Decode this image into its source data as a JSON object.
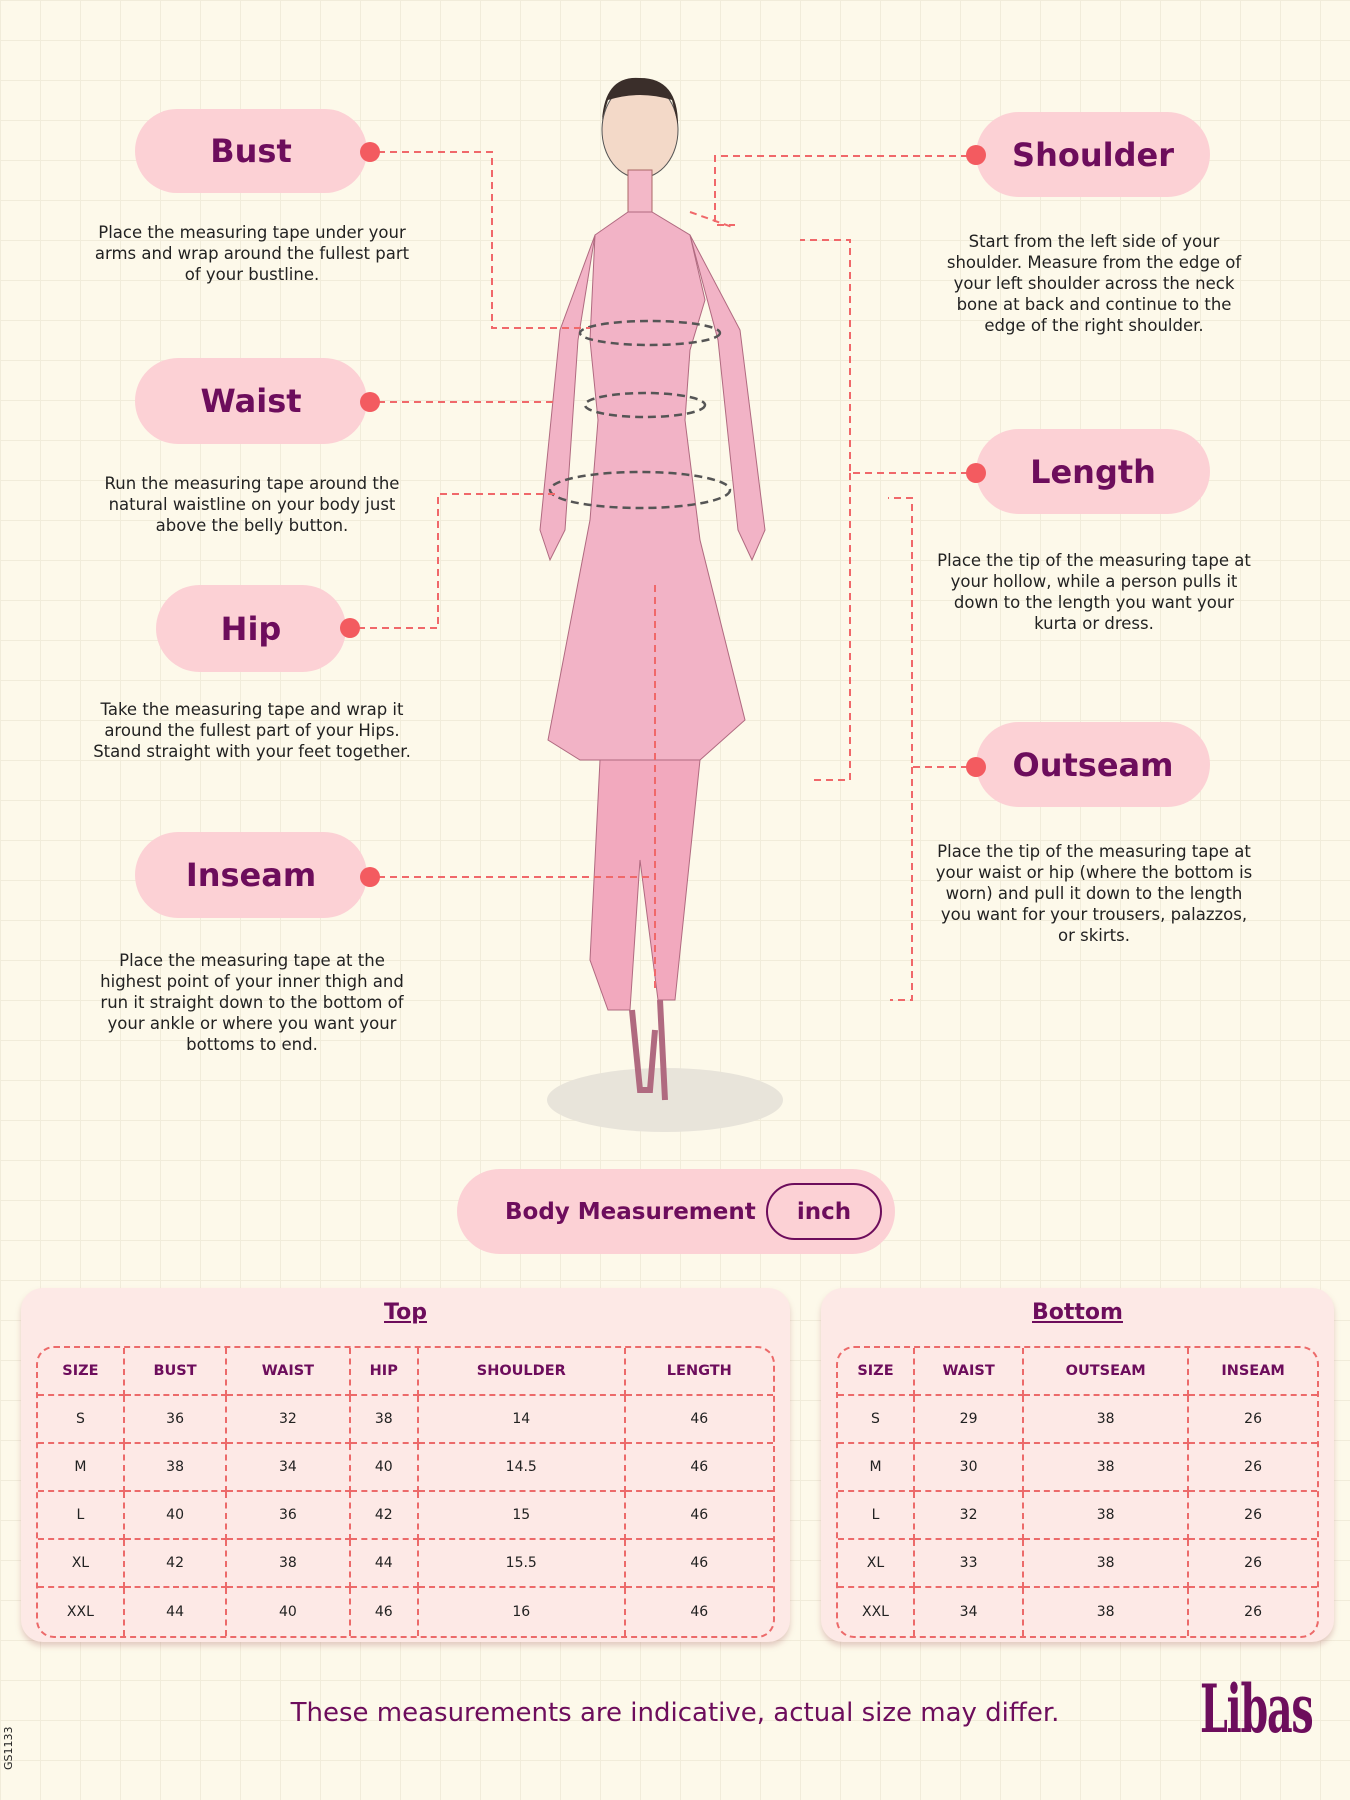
{
  "measurements": {
    "bust": {
      "label": "Bust",
      "desc": "Place the measuring tape under your arms and wrap around the fullest part of your bustline."
    },
    "waist": {
      "label": "Waist",
      "desc": "Run the measuring tape around the natural waistline on your body just above the belly button."
    },
    "hip": {
      "label": "Hip",
      "desc": "Take the measuring tape and wrap it around the fullest part of your Hips. Stand straight with your feet together."
    },
    "inseam": {
      "label": "Inseam",
      "desc": "Place the measuring tape at the highest point of your inner thigh and run it straight down to the bottom of your ankle or where you want your bottoms to end."
    },
    "shoulder": {
      "label": "Shoulder",
      "desc": "Start from the left side of your shoulder. Measure from the edge of your left shoulder across the neck bone at back and continue to the edge of the right shoulder."
    },
    "length": {
      "label": "Length",
      "desc": "Place the tip of the measuring tape at your hollow, while a person pulls it down to the length you want your kurta or dress."
    },
    "outseam": {
      "label": "Outseam",
      "desc": "Place the tip of the measuring tape at your waist or hip (where the bottom is worn) and pull it down to the length you want for your trousers, palazzos, or skirts."
    }
  },
  "unit_header": {
    "label": "Body Measurement",
    "unit": "inch"
  },
  "tables": {
    "top": {
      "title": "Top",
      "headers": [
        "SIZE",
        "BUST",
        "WAIST",
        "HIP",
        "SHOULDER",
        "LENGTH"
      ],
      "rows": [
        [
          "S",
          "36",
          "32",
          "38",
          "14",
          "46"
        ],
        [
          "M",
          "38",
          "34",
          "40",
          "14.5",
          "46"
        ],
        [
          "L",
          "40",
          "36",
          "42",
          "15",
          "46"
        ],
        [
          "XL",
          "42",
          "38",
          "44",
          "15.5",
          "46"
        ],
        [
          "XXL",
          "44",
          "40",
          "46",
          "16",
          "46"
        ]
      ]
    },
    "bottom": {
      "title": "Bottom",
      "headers": [
        "SIZE",
        "WAIST",
        "OUTSEAM",
        "INSEAM"
      ],
      "rows": [
        [
          "S",
          "29",
          "38",
          "26"
        ],
        [
          "M",
          "30",
          "38",
          "26"
        ],
        [
          "L",
          "32",
          "38",
          "26"
        ],
        [
          "XL",
          "33",
          "38",
          "26"
        ],
        [
          "XXL",
          "34",
          "38",
          "26"
        ]
      ]
    }
  },
  "footer": "These measurements are indicative, actual size may differ.",
  "logo": "Libas",
  "code": "GS1133",
  "colors": {
    "pill": "#fcd1d5",
    "accent": "#6d0d5c",
    "dot": "#f35b60"
  }
}
